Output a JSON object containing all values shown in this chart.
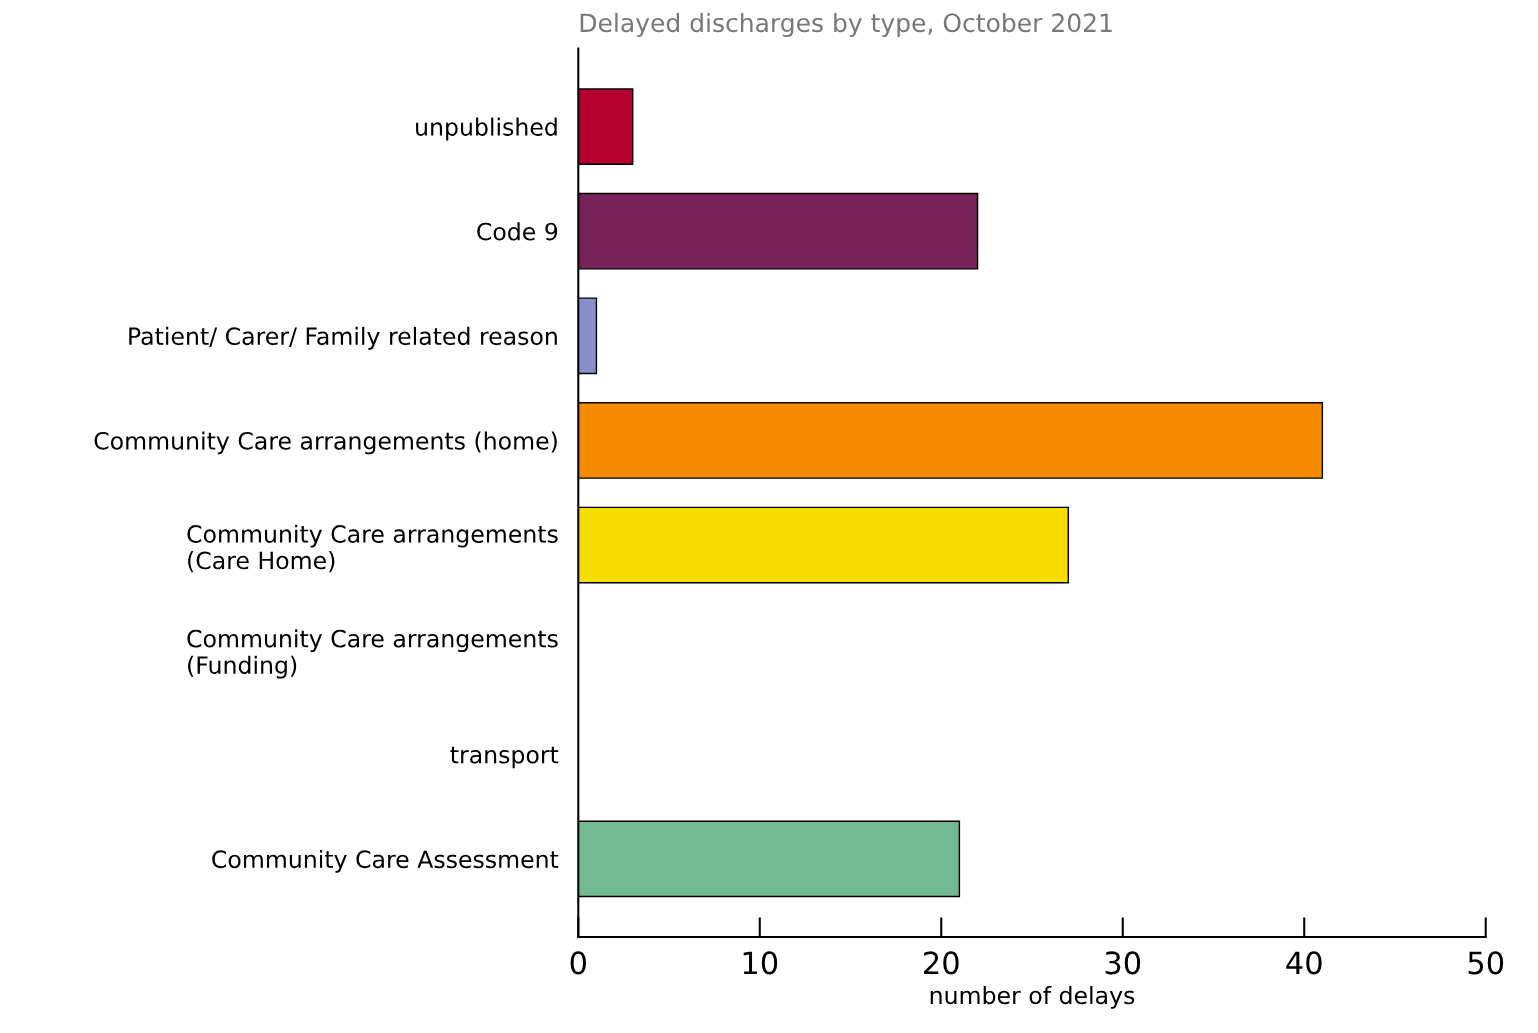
{
  "chart_data": {
    "type": "bar",
    "orientation": "horizontal",
    "title": "Delayed discharges by type, October 2021",
    "xlabel": "number of delays",
    "categories": [
      "unpublished",
      "Code 9",
      "Patient/ Carer/ Family related reason",
      "Community Care arrangements (home)",
      "Community Care arrangements\n(Care Home)",
      "Community Care arrangements\n(Funding)",
      "transport",
      "Community Care Assessment"
    ],
    "values": [
      3,
      22,
      1,
      41,
      27,
      0,
      0,
      21
    ],
    "colors": [
      "#b5002f",
      "#77225a",
      "#8a8fca",
      "#f68b00",
      "#f7de00",
      null,
      null,
      "#72b994"
    ],
    "xlim": [
      0,
      50
    ],
    "xticks": [
      0,
      10,
      20,
      30,
      40,
      50
    ],
    "grid": false
  }
}
